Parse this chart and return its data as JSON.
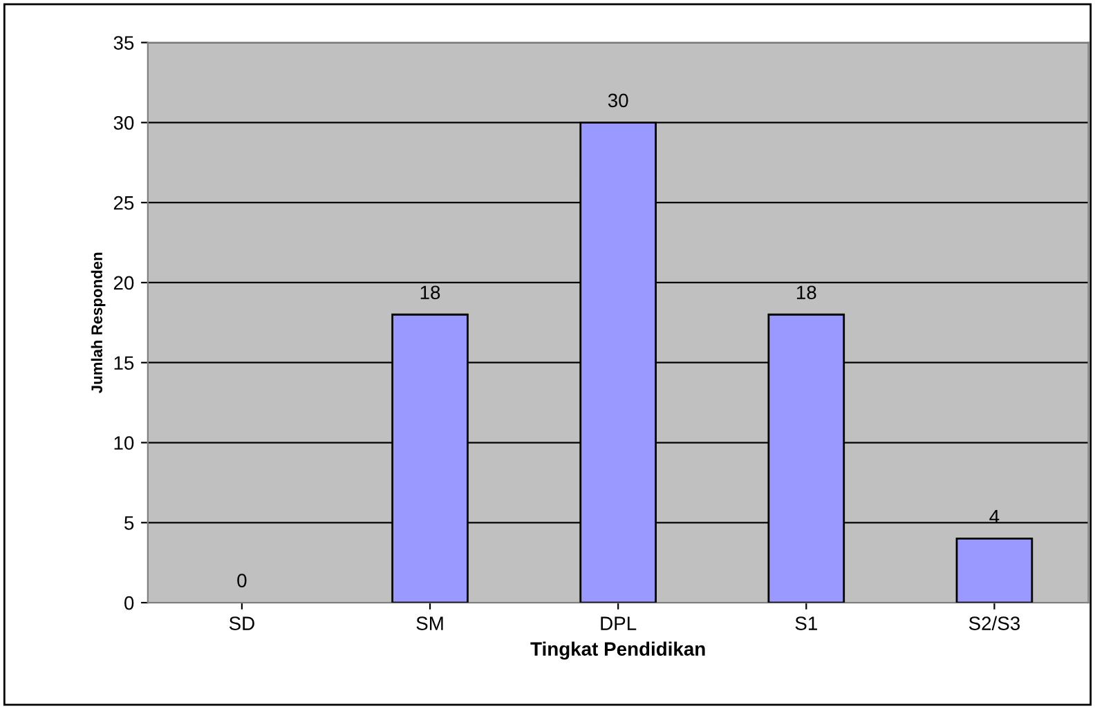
{
  "chart_data": {
    "type": "bar",
    "xlabel": "Tingkat Pendidikan",
    "ylabel": "Jumlah Responden",
    "categories": [
      "SD",
      "SM",
      "DPL",
      "S1",
      "S2/S3"
    ],
    "values": [
      0,
      18,
      30,
      18,
      4
    ],
    "color": "#9999ff",
    "ylim": [
      0,
      35
    ],
    "yticks": [
      0,
      5,
      10,
      15,
      20,
      25,
      30,
      35
    ],
    "grid": "y",
    "data_labels": true
  }
}
